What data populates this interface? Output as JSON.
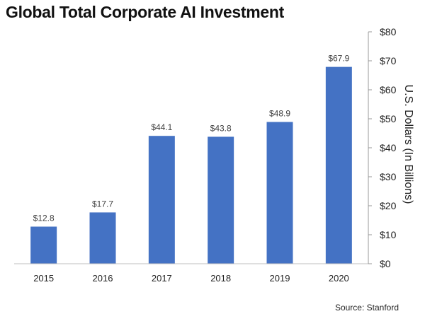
{
  "title": "Global Total Corporate AI Investment",
  "source": "Source: Stanford",
  "colors": {
    "bar": "#4472C4",
    "axis": "#999999",
    "text": "#222222",
    "label": "#404040"
  },
  "chart_data": {
    "type": "bar",
    "title": "Global Total Corporate AI Investment",
    "categories": [
      "2015",
      "2016",
      "2017",
      "2018",
      "2019",
      "2020"
    ],
    "values": [
      12.8,
      17.7,
      44.1,
      43.8,
      48.9,
      67.9
    ],
    "data_labels": [
      "$12.8",
      "$17.7",
      "$44.1",
      "$43.8",
      "$48.9",
      "$67.9"
    ],
    "xlabel": "",
    "ylabel": "U.S. Dollars (In Billions)",
    "ylim": [
      0,
      80
    ],
    "yticks": [
      0,
      10,
      20,
      30,
      40,
      50,
      60,
      70,
      80
    ],
    "ytick_labels": [
      "$0",
      "$10",
      "$20",
      "$30",
      "$40",
      "$50",
      "$60",
      "$70",
      "$80"
    ],
    "y_axis_side": "right",
    "grid": false,
    "legend": "none"
  }
}
